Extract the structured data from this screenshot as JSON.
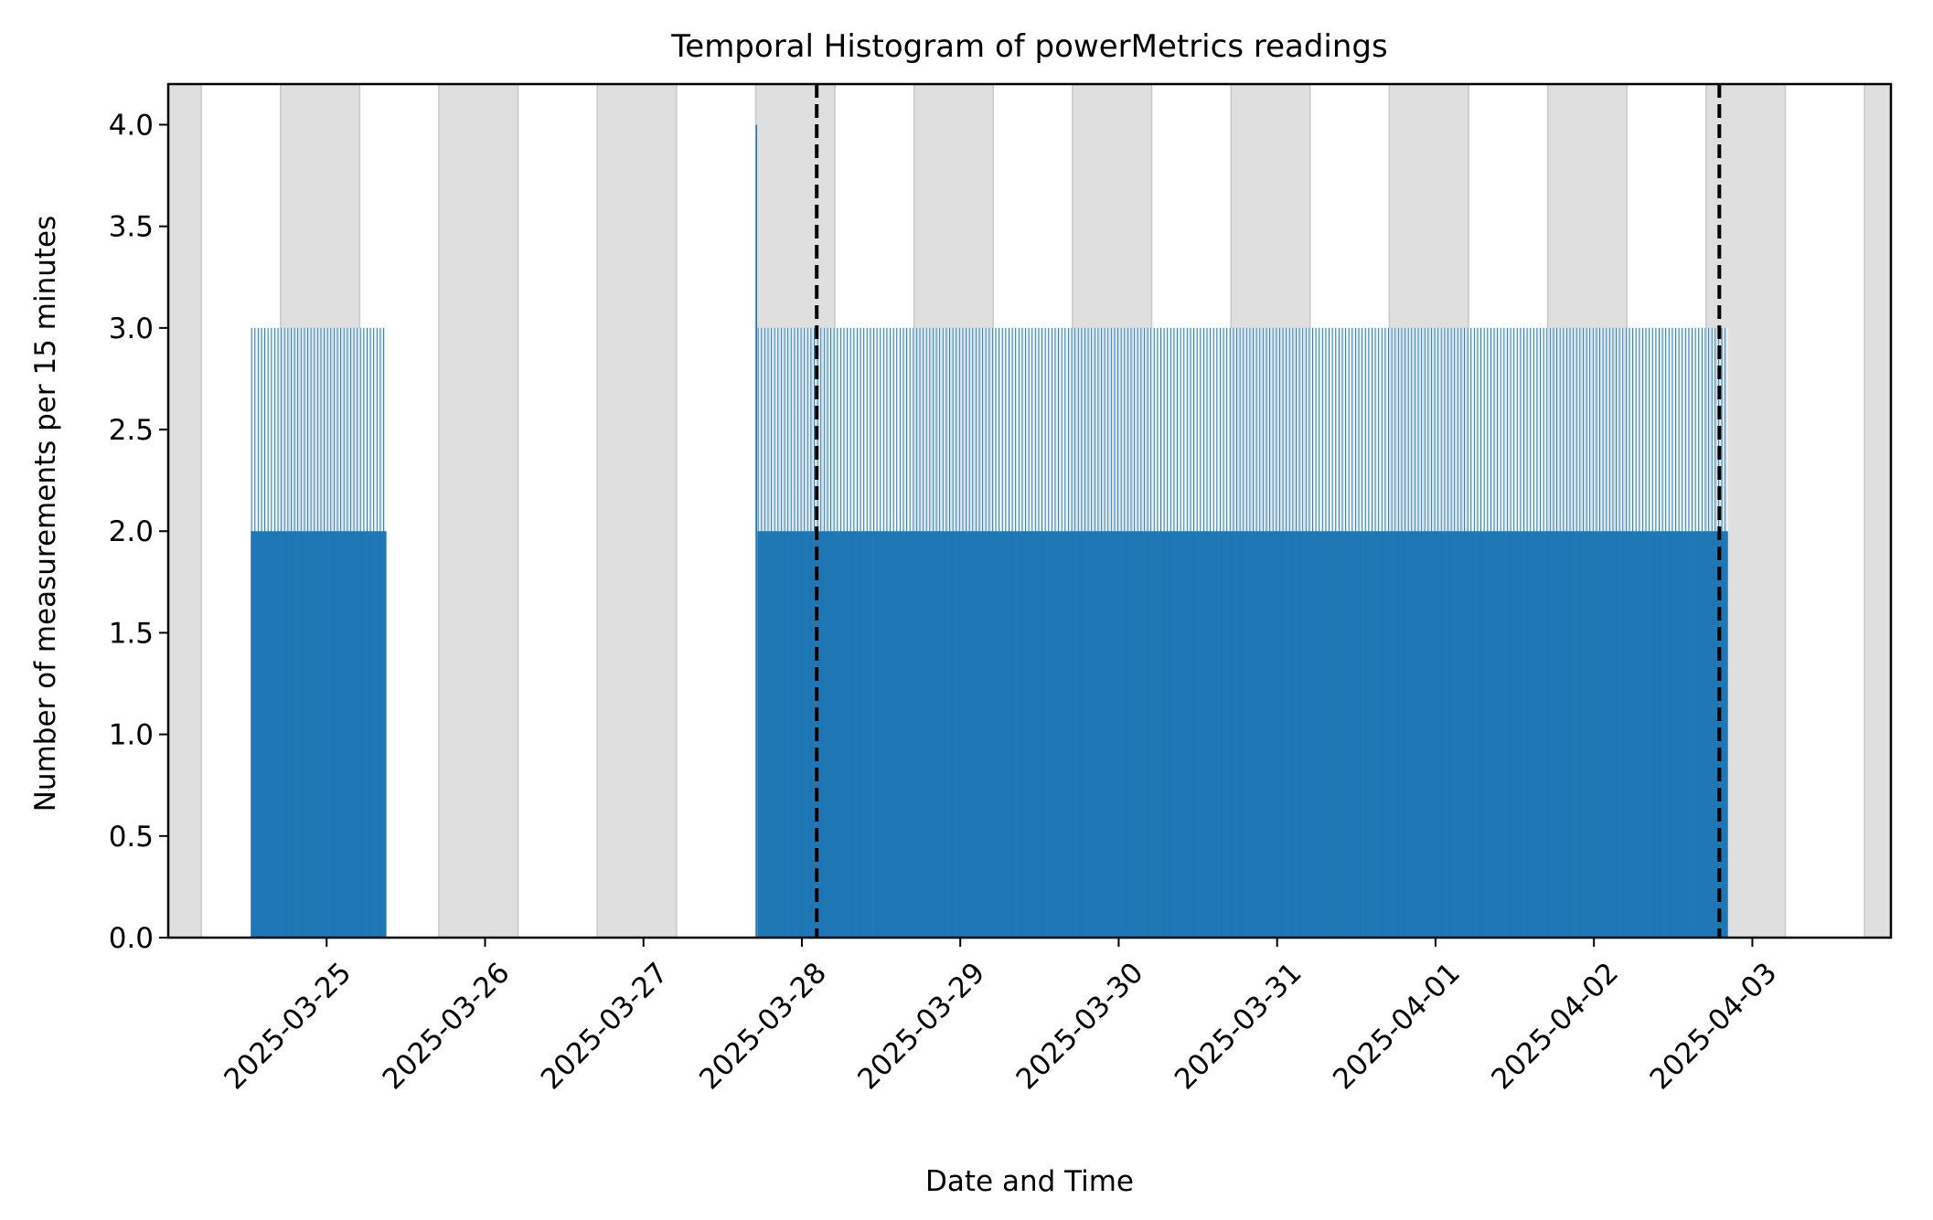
{
  "chart_data": {
    "type": "bar",
    "title": "Temporal Histogram of powerMetrics readings",
    "xlabel": "Date and Time",
    "ylabel": "Number of measurements per 15 minutes",
    "bin_minutes": 15,
    "xlim": [
      "2025-03-24T00:00",
      "2025-04-03T21:00"
    ],
    "ylim": [
      0,
      4.2
    ],
    "x_ticks": [
      "2025-03-25",
      "2025-03-26",
      "2025-03-27",
      "2025-03-28",
      "2025-03-29",
      "2025-03-30",
      "2025-03-31",
      "2025-04-01",
      "2025-04-02",
      "2025-04-03"
    ],
    "y_ticks": [
      "0.0",
      "0.5",
      "1.0",
      "1.5",
      "2.0",
      "2.5",
      "3.0",
      "3.5",
      "4.0"
    ],
    "series": [
      {
        "segments": [
          {
            "start": "2025-03-24T12:30",
            "end": "2025-03-25T09:00",
            "values_cycle": [
              3,
              2
            ]
          },
          {
            "start": "2025-03-27T17:15",
            "end": "2025-04-02T20:15",
            "values_cycle": [
              3,
              2
            ]
          }
        ],
        "spikes": [
          {
            "x": "2025-03-27T17:00",
            "value": 4
          }
        ],
        "color": "#1f77b4"
      }
    ],
    "shaded_periods": [
      {
        "start": "2025-03-24T00:00",
        "end": "2025-03-24T05:00"
      },
      {
        "start": "2025-03-24T17:00",
        "end": "2025-03-25T05:00"
      },
      {
        "start": "2025-03-25T17:00",
        "end": "2025-03-26T05:00"
      },
      {
        "start": "2025-03-26T17:00",
        "end": "2025-03-27T05:00"
      },
      {
        "start": "2025-03-27T17:00",
        "end": "2025-03-28T05:00"
      },
      {
        "start": "2025-03-28T17:00",
        "end": "2025-03-29T05:00"
      },
      {
        "start": "2025-03-29T17:00",
        "end": "2025-03-30T05:00"
      },
      {
        "start": "2025-03-30T17:00",
        "end": "2025-03-31T05:00"
      },
      {
        "start": "2025-03-31T17:00",
        "end": "2025-04-01T05:00"
      },
      {
        "start": "2025-04-01T17:00",
        "end": "2025-04-02T05:00"
      },
      {
        "start": "2025-04-02T17:00",
        "end": "2025-04-03T05:00"
      },
      {
        "start": "2025-04-03T17:00",
        "end": "2025-04-03T21:00"
      }
    ],
    "shade_color": "#dfdfdf",
    "vlines": [
      {
        "x": "2025-03-28T02:15",
        "style": "dashed",
        "color": "#000000"
      },
      {
        "x": "2025-04-02T19:00",
        "style": "dashed",
        "color": "#000000"
      }
    ],
    "grid": false,
    "legend": "none"
  }
}
